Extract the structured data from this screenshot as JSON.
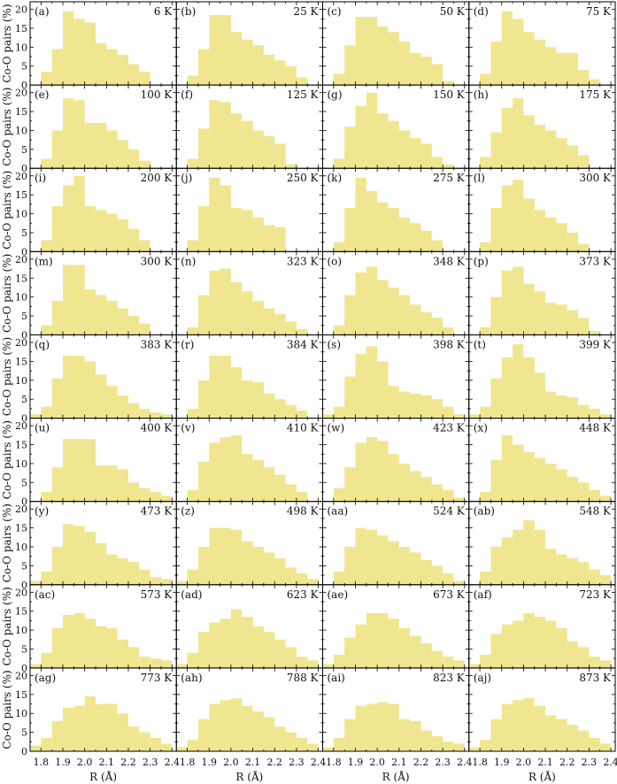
{
  "figure": {
    "ylabel_left": "Co-O pairs (%)",
    "xlabel_bottom": "R (Å)",
    "bar_color": "#f0e690",
    "x_ticks": [
      "1.8",
      "1.9",
      "2.0",
      "2.1",
      "2.2",
      "2.3",
      "2.4"
    ],
    "y_ticks": [
      "0",
      "5",
      "10",
      "15",
      "20"
    ]
  },
  "chart_data": {
    "type": "bar",
    "layout": "9 rows x 4 columns small multiples (histograms)",
    "xlabel": "R (Å)",
    "ylabel": "Co-O pairs (%)",
    "xlim": [
      1.75,
      2.42
    ],
    "ylim": [
      0,
      22
    ],
    "bin_edges": [
      1.75,
      1.8,
      1.85,
      1.9,
      1.95,
      2.0,
      2.05,
      2.1,
      2.15,
      2.2,
      2.25,
      2.3,
      2.35,
      2.4
    ],
    "panels": [
      {
        "label": "(a)",
        "temp": "6 K",
        "values": [
          0,
          3.5,
          9.5,
          19.5,
          17.5,
          16.5,
          11,
          9.5,
          8,
          5.5,
          3.5,
          0,
          0
        ]
      },
      {
        "label": "(b)",
        "temp": "25 K",
        "values": [
          0,
          2.5,
          9.5,
          18.5,
          18.5,
          14,
          12,
          10.5,
          8,
          6.5,
          5,
          2,
          0
        ]
      },
      {
        "label": "(c)",
        "temp": "50 K",
        "values": [
          0,
          3,
          10.5,
          18,
          18,
          15.5,
          14,
          11.5,
          8.5,
          7.5,
          5.5,
          1,
          0
        ]
      },
      {
        "label": "(d)",
        "temp": "75 K",
        "values": [
          0,
          3,
          11.5,
          19.5,
          17.5,
          14,
          12,
          10,
          8.5,
          8.5,
          4,
          1.5,
          0
        ]
      },
      {
        "label": "(e)",
        "temp": "100 K",
        "values": [
          0,
          2.5,
          10,
          18.5,
          18,
          12,
          12,
          10,
          7.5,
          5,
          2,
          0,
          0
        ]
      },
      {
        "label": "(f)",
        "temp": "125 K",
        "values": [
          0,
          2.5,
          10.5,
          18,
          17.5,
          14.5,
          12.5,
          10,
          8.5,
          6.5,
          1,
          0,
          0
        ]
      },
      {
        "label": "(g)",
        "temp": "150 K",
        "values": [
          0,
          2.5,
          11,
          16.5,
          20,
          14.5,
          12.5,
          10,
          8,
          6.5,
          3,
          1,
          0
        ]
      },
      {
        "label": "(h)",
        "temp": "175 K",
        "values": [
          0,
          3,
          9.5,
          16,
          18.5,
          14,
          11.5,
          10,
          8,
          6,
          3.5,
          0,
          0
        ]
      },
      {
        "label": "(i)",
        "temp": "200 K",
        "values": [
          0,
          3,
          12,
          17.5,
          20,
          12,
          11,
          10,
          8.5,
          6,
          3,
          0,
          0
        ]
      },
      {
        "label": "(j)",
        "temp": "250 K",
        "values": [
          0,
          3,
          12,
          19.5,
          17.5,
          11.5,
          11,
          9,
          7,
          6.5,
          0,
          0,
          0
        ]
      },
      {
        "label": "(k)",
        "temp": "275 K",
        "values": [
          0,
          2.5,
          11.5,
          19.5,
          16,
          13,
          11.5,
          9,
          7.5,
          5.5,
          3,
          0,
          0
        ]
      },
      {
        "label": "(l)",
        "temp": "300 K",
        "values": [
          0,
          2.5,
          11.5,
          17.5,
          19,
          14,
          11,
          9,
          7.5,
          5,
          2,
          0,
          0
        ]
      },
      {
        "label": "(m)",
        "temp": "300 K",
        "values": [
          0,
          2.5,
          9,
          18.5,
          18.5,
          12,
          10.5,
          9,
          7,
          5,
          3,
          0,
          0
        ]
      },
      {
        "label": "(n)",
        "temp": "323 K",
        "values": [
          0,
          2,
          10.5,
          17,
          17.5,
          14,
          11.5,
          9,
          7,
          5.5,
          3.5,
          1.5,
          0
        ]
      },
      {
        "label": "(o)",
        "temp": "348 K",
        "values": [
          0,
          2.5,
          10.5,
          16.5,
          18,
          14.5,
          12.5,
          10.5,
          8,
          6,
          4.5,
          2,
          0
        ]
      },
      {
        "label": "(p)",
        "temp": "373 K",
        "values": [
          0,
          2,
          10,
          17,
          18,
          13.5,
          11.5,
          8.5,
          8,
          6.5,
          4.5,
          1,
          0
        ]
      },
      {
        "label": "(q)",
        "temp": "383 K",
        "values": [
          1,
          3,
          10.5,
          16.5,
          16.5,
          15,
          11.5,
          8.5,
          6,
          4,
          2.5,
          1.5,
          1
        ]
      },
      {
        "label": "(r)",
        "temp": "384 K",
        "values": [
          0,
          2.5,
          10,
          16.5,
          16.5,
          13.5,
          10,
          9.5,
          6.5,
          5,
          3.5,
          2,
          0
        ]
      },
      {
        "label": "(s)",
        "temp": "398 K",
        "values": [
          1,
          3,
          11,
          17,
          19,
          15,
          8.5,
          7,
          6.5,
          6,
          5,
          3,
          1
        ]
      },
      {
        "label": "(t)",
        "temp": "399 K",
        "values": [
          1,
          3,
          10.5,
          16,
          19.5,
          16,
          12,
          7,
          6,
          5.5,
          3.5,
          2.5,
          1
        ]
      },
      {
        "label": "(u)",
        "temp": "400 K",
        "values": [
          0,
          2.5,
          9,
          16.5,
          16.5,
          16.5,
          9.5,
          9.5,
          8.5,
          5,
          3.5,
          2.5,
          1.5
        ]
      },
      {
        "label": "(v)",
        "temp": "410 K",
        "values": [
          0,
          3,
          10.5,
          15.5,
          17,
          17.5,
          12.5,
          11,
          9,
          7,
          4.5,
          2.5,
          0
        ]
      },
      {
        "label": "(w)",
        "temp": "423 K",
        "values": [
          0,
          3.5,
          9,
          15.5,
          17,
          16,
          12.5,
          10,
          8,
          6.5,
          4.5,
          3,
          1
        ]
      },
      {
        "label": "(x)",
        "temp": "448 K",
        "values": [
          0,
          2.5,
          11,
          17.5,
          15,
          13,
          11.5,
          10,
          8.5,
          6.5,
          5,
          3,
          1.5
        ]
      },
      {
        "label": "(y)",
        "temp": "473 K",
        "values": [
          1,
          3.5,
          10,
          16,
          15.5,
          14,
          11,
          8,
          7,
          6,
          4,
          2,
          1.5
        ]
      },
      {
        "label": "(z)",
        "temp": "498 K",
        "values": [
          1,
          4,
          10,
          15,
          15,
          14.5,
          11.5,
          10,
          8.5,
          7,
          4.5,
          3,
          1.5
        ]
      },
      {
        "label": "(aa)",
        "temp": "524 K",
        "values": [
          0,
          3.5,
          10,
          15,
          14.5,
          13,
          11.5,
          10,
          8.5,
          6.5,
          5,
          3,
          1
        ]
      },
      {
        "label": "(ab)",
        "temp": "548 K",
        "values": [
          0,
          3.5,
          10,
          12.5,
          14.5,
          17,
          14.5,
          9.5,
          8,
          7,
          6,
          4,
          2.5
        ]
      },
      {
        "label": "(ac)",
        "temp": "573 K",
        "values": [
          1,
          4,
          10.5,
          14,
          14.5,
          13,
          11,
          10.5,
          7.5,
          5.5,
          3,
          2.5,
          2
        ]
      },
      {
        "label": "(ad)",
        "temp": "623 K",
        "values": [
          1,
          4,
          9.5,
          12,
          13,
          15.5,
          13.5,
          11,
          9.5,
          7.5,
          5.5,
          3,
          2
        ]
      },
      {
        "label": "(ae)",
        "temp": "673 K",
        "values": [
          1,
          3.5,
          8,
          11.5,
          14.5,
          14.5,
          13,
          10.5,
          8.5,
          6.5,
          4.5,
          3,
          2
        ]
      },
      {
        "label": "(af)",
        "temp": "723 K",
        "values": [
          1,
          3.5,
          9,
          11.5,
          12.5,
          14.5,
          13.5,
          12.5,
          10.5,
          7,
          5.5,
          3,
          2
        ]
      },
      {
        "label": "(ag)",
        "temp": "773 K",
        "values": [
          1.5,
          3.5,
          8,
          11.5,
          12,
          14.5,
          12.5,
          12.5,
          10,
          6.5,
          5,
          3.5,
          2
        ]
      },
      {
        "label": "(ah)",
        "temp": "788 K",
        "values": [
          1,
          3,
          8.5,
          12.5,
          13.5,
          14,
          12,
          10.5,
          9,
          6.5,
          5,
          3.5,
          2
        ]
      },
      {
        "label": "(ai)",
        "temp": "823 K",
        "values": [
          1,
          3.5,
          8.5,
          12,
          12.5,
          13,
          12.5,
          8.5,
          8,
          5.5,
          4,
          2.5,
          2
        ]
      },
      {
        "label": "(aj)",
        "temp": "873 K",
        "values": [
          1,
          3,
          8.5,
          12.5,
          13.5,
          14,
          12,
          9.5,
          8.5,
          7,
          5.5,
          3.5,
          2
        ]
      }
    ]
  }
}
